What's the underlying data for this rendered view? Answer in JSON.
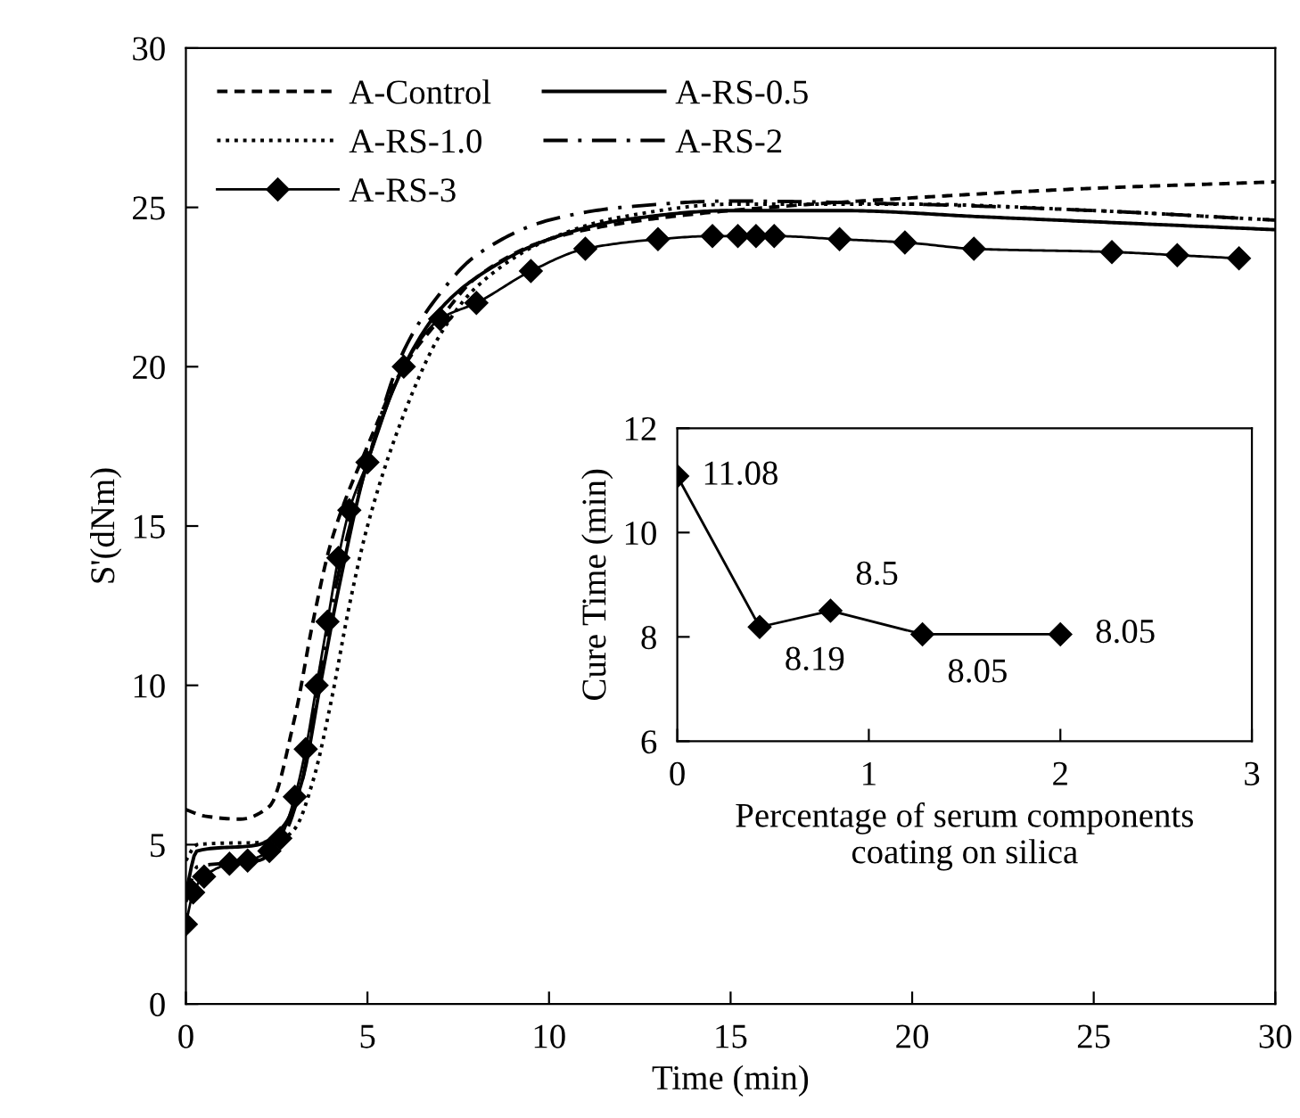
{
  "chart_data": [
    {
      "type": "line",
      "xlabel": "Time (min)",
      "ylabel": "S'(dNm)",
      "xlim": [
        0,
        30
      ],
      "ylim": [
        0,
        30
      ],
      "xticks": [
        0,
        5,
        10,
        15,
        20,
        25,
        30
      ],
      "yticks": [
        0,
        5,
        10,
        15,
        20,
        25,
        30
      ],
      "grid": false,
      "legend": "top left",
      "series": [
        {
          "name": "A-Control",
          "color": "#000000",
          "line_style": "dashed",
          "marker": "none",
          "x": [
            0,
            0.5,
            1.5,
            2.3,
            3,
            3.5,
            4,
            5,
            6,
            7,
            8,
            10,
            12,
            15,
            20,
            25,
            30
          ],
          "values": [
            6.1,
            5.9,
            5.8,
            6.2,
            9,
            12,
            14.5,
            17.5,
            20,
            21.5,
            22.8,
            24,
            24.5,
            24.9,
            25.3,
            25.6,
            25.8
          ]
        },
        {
          "name": "A-RS-0.5",
          "color": "#000000",
          "line_style": "solid",
          "marker": "none",
          "x": [
            0,
            0.3,
            2,
            2.7,
            3.2,
            3.7,
            4.2,
            5,
            6,
            7,
            8,
            10,
            12,
            15,
            18,
            22,
            26,
            30
          ],
          "values": [
            3.5,
            4.8,
            5,
            5.6,
            7,
            10,
            13,
            17,
            20,
            21.8,
            22.8,
            24,
            24.6,
            24.9,
            24.9,
            24.7,
            24.5,
            24.3
          ]
        },
        {
          "name": "A-RS-1.0",
          "color": "#000000",
          "line_style": "dotted",
          "marker": "none",
          "x": [
            0,
            0.3,
            2.5,
            3,
            3.5,
            4,
            4.5,
            5,
            6,
            7,
            8,
            10,
            12,
            15,
            20,
            25,
            30
          ],
          "values": [
            4.5,
            5,
            5.1,
            5.5,
            7,
            9.5,
            12.5,
            15,
            18.5,
            21,
            22.5,
            24,
            24.7,
            25.1,
            25.1,
            24.9,
            24.6
          ]
        },
        {
          "name": "A-RS-2",
          "color": "#000000",
          "line_style": "dashdot",
          "marker": "none",
          "x": [
            0,
            0.3,
            2,
            2.7,
            3.2,
            3.7,
            4.2,
            5,
            6,
            7,
            8,
            10,
            12,
            15,
            20,
            25,
            30
          ],
          "values": [
            3.2,
            4.3,
            4.5,
            5.3,
            7,
            10.5,
            13.5,
            17,
            20.5,
            22.3,
            23.5,
            24.6,
            25,
            25.2,
            25.1,
            24.9,
            24.6
          ]
        },
        {
          "name": "A-RS-3",
          "color": "#000000",
          "line_style": "solid",
          "marker": "diamond",
          "x": [
            0,
            0.2,
            0.5,
            1.2,
            1.7,
            2.3,
            2.6,
            3,
            3.3,
            3.6,
            3.9,
            4.2,
            4.5,
            5,
            6,
            7,
            8,
            9.5,
            11,
            13,
            14.5,
            15.2,
            15.7,
            16.2,
            18,
            19.8,
            21.7,
            25.5,
            27.3,
            29
          ],
          "values": [
            2.5,
            3.5,
            4,
            4.4,
            4.5,
            4.8,
            5.2,
            6.5,
            8,
            10,
            12,
            14,
            15.5,
            17,
            20,
            21.5,
            22,
            23,
            23.7,
            24,
            24.1,
            24.1,
            24.1,
            24.1,
            24,
            23.9,
            23.7,
            23.6,
            23.5,
            23.4
          ]
        }
      ]
    },
    {
      "type": "line",
      "xlabel": "Percentage of serum components\ncoating on silica",
      "ylabel": "Cure Time (min)",
      "xlim": [
        0,
        3
      ],
      "ylim": [
        6,
        12
      ],
      "xticks": [
        0,
        1,
        2,
        3
      ],
      "yticks": [
        6,
        8,
        10,
        12
      ],
      "grid": false,
      "marker": "diamond",
      "line_style": "solid",
      "x": [
        0,
        0.43,
        0.8,
        1.28,
        2.0
      ],
      "values": [
        11.08,
        8.19,
        8.5,
        8.05,
        8.05
      ],
      "color": "#000000",
      "data_labels": true
    }
  ]
}
